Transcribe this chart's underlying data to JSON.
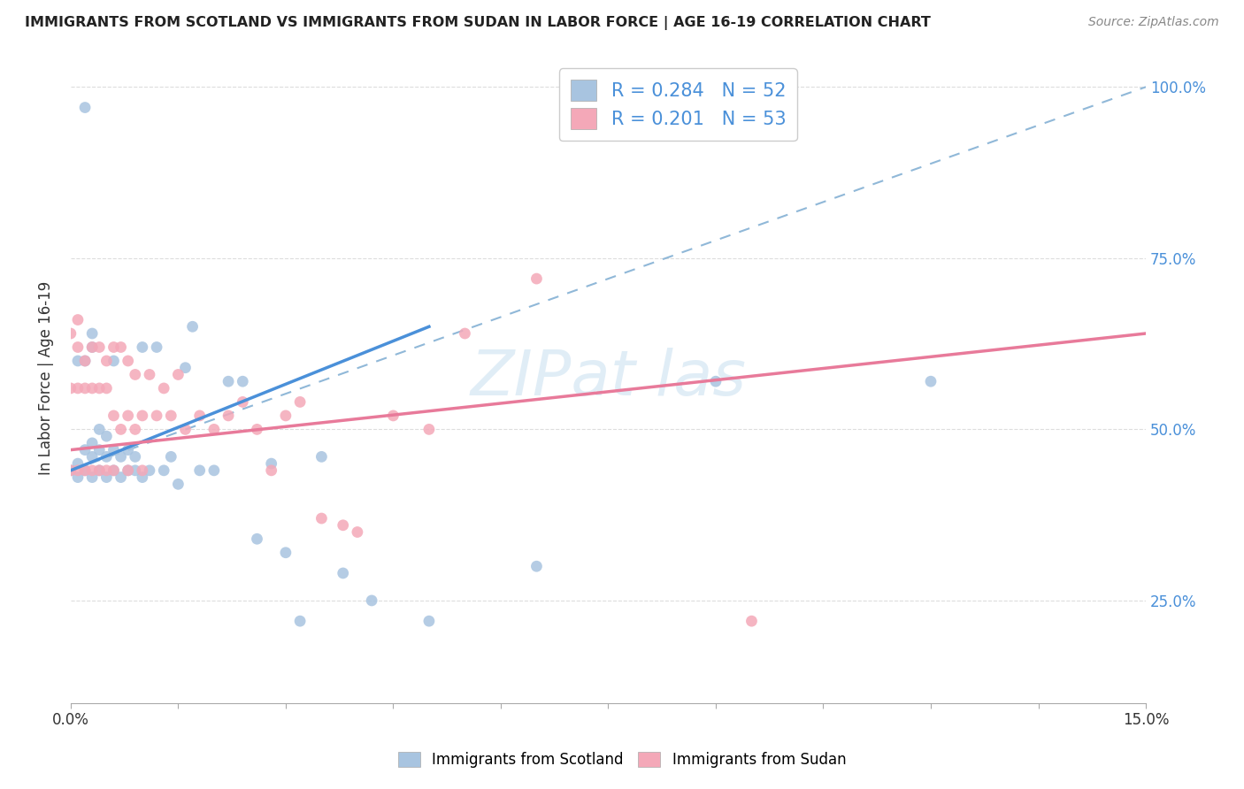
{
  "title": "IMMIGRANTS FROM SCOTLAND VS IMMIGRANTS FROM SUDAN IN LABOR FORCE | AGE 16-19 CORRELATION CHART",
  "source": "Source: ZipAtlas.com",
  "ylabel": "In Labor Force | Age 16-19",
  "x_min": 0.0,
  "x_max": 0.15,
  "y_min": 0.1,
  "y_max": 1.05,
  "scotland_R": 0.284,
  "scotland_N": 52,
  "sudan_R": 0.201,
  "sudan_N": 53,
  "scotland_color": "#a8c4e0",
  "sudan_color": "#f4a8b8",
  "scotland_line_color": "#4a90d9",
  "sudan_line_color": "#e87a9a",
  "legend_text_color": "#4a90d9",
  "watermark_color": "#c8dff0",
  "scot_x": [
    0.0,
    0.001,
    0.001,
    0.001,
    0.002,
    0.002,
    0.002,
    0.002,
    0.003,
    0.003,
    0.003,
    0.003,
    0.003,
    0.004,
    0.004,
    0.004,
    0.005,
    0.005,
    0.005,
    0.006,
    0.006,
    0.006,
    0.007,
    0.007,
    0.008,
    0.008,
    0.009,
    0.009,
    0.01,
    0.01,
    0.011,
    0.012,
    0.013,
    0.014,
    0.015,
    0.016,
    0.017,
    0.018,
    0.02,
    0.022,
    0.024,
    0.026,
    0.028,
    0.03,
    0.032,
    0.035,
    0.038,
    0.042,
    0.05,
    0.065,
    0.09,
    0.12
  ],
  "scot_y": [
    0.44,
    0.43,
    0.45,
    0.6,
    0.44,
    0.47,
    0.6,
    0.97,
    0.43,
    0.46,
    0.48,
    0.62,
    0.64,
    0.44,
    0.47,
    0.5,
    0.43,
    0.46,
    0.49,
    0.44,
    0.47,
    0.6,
    0.43,
    0.46,
    0.44,
    0.47,
    0.44,
    0.46,
    0.43,
    0.62,
    0.44,
    0.62,
    0.44,
    0.46,
    0.42,
    0.59,
    0.65,
    0.44,
    0.44,
    0.57,
    0.57,
    0.34,
    0.45,
    0.32,
    0.22,
    0.46,
    0.29,
    0.25,
    0.22,
    0.3,
    0.57,
    0.57
  ],
  "sud_x": [
    0.0,
    0.0,
    0.0,
    0.001,
    0.001,
    0.001,
    0.001,
    0.002,
    0.002,
    0.002,
    0.003,
    0.003,
    0.003,
    0.004,
    0.004,
    0.004,
    0.005,
    0.005,
    0.005,
    0.006,
    0.006,
    0.006,
    0.007,
    0.007,
    0.008,
    0.008,
    0.008,
    0.009,
    0.009,
    0.01,
    0.01,
    0.011,
    0.012,
    0.013,
    0.014,
    0.015,
    0.016,
    0.018,
    0.02,
    0.022,
    0.024,
    0.026,
    0.028,
    0.03,
    0.032,
    0.035,
    0.038,
    0.04,
    0.045,
    0.05,
    0.055,
    0.065,
    0.095
  ],
  "sud_y": [
    0.44,
    0.56,
    0.64,
    0.44,
    0.56,
    0.62,
    0.66,
    0.44,
    0.56,
    0.6,
    0.44,
    0.56,
    0.62,
    0.44,
    0.56,
    0.62,
    0.44,
    0.56,
    0.6,
    0.44,
    0.52,
    0.62,
    0.5,
    0.62,
    0.44,
    0.52,
    0.6,
    0.5,
    0.58,
    0.44,
    0.52,
    0.58,
    0.52,
    0.56,
    0.52,
    0.58,
    0.5,
    0.52,
    0.5,
    0.52,
    0.54,
    0.5,
    0.44,
    0.52,
    0.54,
    0.37,
    0.36,
    0.35,
    0.52,
    0.5,
    0.64,
    0.72,
    0.22
  ],
  "scot_line_x": [
    0.0,
    0.05
  ],
  "scot_line_y": [
    0.44,
    0.65
  ],
  "sud_line_x": [
    0.0,
    0.15
  ],
  "sud_line_y": [
    0.47,
    0.64
  ],
  "dash_line_x": [
    0.0,
    0.15
  ],
  "dash_line_y": [
    0.44,
    1.0
  ]
}
